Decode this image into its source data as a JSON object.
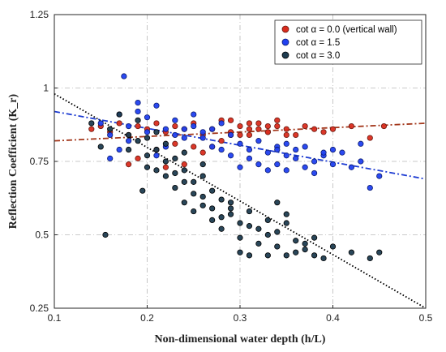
{
  "chart_data": {
    "type": "scatter",
    "xlabel": "Non-dimensional water depth  (h/L)",
    "ylabel": "Reflection Coefficient (K_r)",
    "xlim": [
      0.1,
      0.5
    ],
    "ylim": [
      0.25,
      1.25
    ],
    "xticks": [
      "0.1",
      "0.2",
      "0.3",
      "0.4",
      "0.5"
    ],
    "yticks": [
      "0.25",
      "0.5",
      "0.75",
      "1",
      "1.25"
    ],
    "grid": true,
    "legend_position": "top-right",
    "colors": {
      "vertical": "#d92c1e",
      "cot15": "#2040f0",
      "cot30": "#1e3c50"
    },
    "series": [
      {
        "name": "cot α = 0.0 (vertical wall)",
        "marker_color": "#d92c1e",
        "trend": {
          "x": [
            0.1,
            0.5
          ],
          "y": [
            0.82,
            0.88
          ],
          "style": "dash-dot",
          "color": "#a3371b"
        },
        "points": [
          [
            0.14,
            0.86
          ],
          [
            0.15,
            0.87
          ],
          [
            0.16,
            0.85
          ],
          [
            0.17,
            0.88
          ],
          [
            0.18,
            0.84
          ],
          [
            0.19,
            0.87
          ],
          [
            0.2,
            0.86
          ],
          [
            0.21,
            0.88
          ],
          [
            0.22,
            0.85
          ],
          [
            0.23,
            0.87
          ],
          [
            0.24,
            0.86
          ],
          [
            0.25,
            0.88
          ],
          [
            0.26,
            0.84
          ],
          [
            0.27,
            0.86
          ],
          [
            0.28,
            0.89
          ],
          [
            0.29,
            0.85
          ],
          [
            0.3,
            0.87
          ],
          [
            0.31,
            0.86
          ],
          [
            0.32,
            0.88
          ],
          [
            0.33,
            0.85
          ],
          [
            0.34,
            0.87
          ],
          [
            0.35,
            0.86
          ],
          [
            0.36,
            0.84
          ],
          [
            0.37,
            0.87
          ],
          [
            0.38,
            0.86
          ],
          [
            0.39,
            0.85
          ],
          [
            0.4,
            0.86
          ],
          [
            0.42,
            0.87
          ],
          [
            0.44,
            0.83
          ],
          [
            0.455,
            0.87
          ],
          [
            0.18,
            0.74
          ],
          [
            0.19,
            0.76
          ],
          [
            0.21,
            0.79
          ],
          [
            0.22,
            0.73
          ],
          [
            0.23,
            0.81
          ],
          [
            0.24,
            0.74
          ],
          [
            0.25,
            0.8
          ],
          [
            0.26,
            0.78
          ],
          [
            0.27,
            0.8
          ],
          [
            0.28,
            0.82
          ],
          [
            0.29,
            0.89
          ],
          [
            0.3,
            0.84
          ],
          [
            0.31,
            0.88
          ],
          [
            0.32,
            0.86
          ],
          [
            0.33,
            0.85
          ],
          [
            0.34,
            0.89
          ],
          [
            0.35,
            0.84
          ],
          [
            0.29,
            0.84
          ],
          [
            0.31,
            0.84
          ],
          [
            0.33,
            0.87
          ]
        ]
      },
      {
        "name": "cot α = 1.5",
        "marker_color": "#2040f0",
        "trend": {
          "x": [
            0.1,
            0.5
          ],
          "y": [
            0.92,
            0.69
          ],
          "style": "dash-dot",
          "color": "#1b3ad2"
        },
        "points": [
          [
            0.15,
            0.88
          ],
          [
            0.16,
            0.84
          ],
          [
            0.17,
            0.91
          ],
          [
            0.175,
            1.04
          ],
          [
            0.18,
            0.87
          ],
          [
            0.19,
            0.92
          ],
          [
            0.2,
            0.85
          ],
          [
            0.21,
            0.94
          ],
          [
            0.22,
            0.86
          ],
          [
            0.23,
            0.89
          ],
          [
            0.24,
            0.83
          ],
          [
            0.25,
            0.87
          ],
          [
            0.26,
            0.85
          ],
          [
            0.27,
            0.8
          ],
          [
            0.28,
            0.88
          ],
          [
            0.29,
            0.84
          ],
          [
            0.3,
            0.81
          ],
          [
            0.31,
            0.79
          ],
          [
            0.32,
            0.82
          ],
          [
            0.33,
            0.78
          ],
          [
            0.34,
            0.8
          ],
          [
            0.35,
            0.77
          ],
          [
            0.36,
            0.76
          ],
          [
            0.37,
            0.8
          ],
          [
            0.38,
            0.75
          ],
          [
            0.39,
            0.77
          ],
          [
            0.4,
            0.74
          ],
          [
            0.42,
            0.73
          ],
          [
            0.43,
            0.75
          ],
          [
            0.44,
            0.66
          ],
          [
            0.45,
            0.7
          ],
          [
            0.16,
            0.76
          ],
          [
            0.17,
            0.79
          ],
          [
            0.18,
            0.82
          ],
          [
            0.19,
            0.95
          ],
          [
            0.2,
            0.9
          ],
          [
            0.21,
            0.77
          ],
          [
            0.22,
            0.8
          ],
          [
            0.23,
            0.84
          ],
          [
            0.24,
            0.86
          ],
          [
            0.25,
            0.91
          ],
          [
            0.26,
            0.83
          ],
          [
            0.27,
            0.86
          ],
          [
            0.28,
            0.79
          ],
          [
            0.29,
            0.77
          ],
          [
            0.3,
            0.73
          ],
          [
            0.31,
            0.76
          ],
          [
            0.32,
            0.74
          ],
          [
            0.33,
            0.72
          ],
          [
            0.34,
            0.74
          ],
          [
            0.35,
            0.81
          ],
          [
            0.36,
            0.79
          ],
          [
            0.37,
            0.73
          ],
          [
            0.38,
            0.71
          ],
          [
            0.39,
            0.78
          ],
          [
            0.4,
            0.79
          ],
          [
            0.41,
            0.78
          ],
          [
            0.35,
            0.72
          ],
          [
            0.43,
            0.81
          ],
          [
            0.34,
            0.79
          ]
        ]
      },
      {
        "name": "cot α = 3.0",
        "marker_color": "#1e3c50",
        "trend": {
          "x": [
            0.1,
            0.5
          ],
          "y": [
            0.98,
            0.25
          ],
          "style": "dotted",
          "color": "#000000"
        },
        "points": [
          [
            0.14,
            0.88
          ],
          [
            0.15,
            0.8
          ],
          [
            0.155,
            0.5
          ],
          [
            0.16,
            0.86
          ],
          [
            0.17,
            0.91
          ],
          [
            0.18,
            0.84
          ],
          [
            0.19,
            0.89
          ],
          [
            0.195,
            0.65
          ],
          [
            0.2,
            0.77
          ],
          [
            0.21,
            0.72
          ],
          [
            0.22,
            0.7
          ],
          [
            0.23,
            0.66
          ],
          [
            0.24,
            0.61
          ],
          [
            0.25,
            0.58
          ],
          [
            0.26,
            0.6
          ],
          [
            0.27,
            0.55
          ],
          [
            0.28,
            0.52
          ],
          [
            0.29,
            0.57
          ],
          [
            0.3,
            0.49
          ],
          [
            0.31,
            0.53
          ],
          [
            0.32,
            0.47
          ],
          [
            0.33,
            0.5
          ],
          [
            0.34,
            0.46
          ],
          [
            0.35,
            0.43
          ],
          [
            0.36,
            0.48
          ],
          [
            0.37,
            0.45
          ],
          [
            0.38,
            0.43
          ],
          [
            0.39,
            0.42
          ],
          [
            0.4,
            0.46
          ],
          [
            0.42,
            0.44
          ],
          [
            0.44,
            0.42
          ],
          [
            0.45,
            0.44
          ],
          [
            0.21,
            0.85
          ],
          [
            0.22,
            0.81
          ],
          [
            0.23,
            0.76
          ],
          [
            0.24,
            0.72
          ],
          [
            0.25,
            0.68
          ],
          [
            0.26,
            0.63
          ],
          [
            0.27,
            0.59
          ],
          [
            0.28,
            0.56
          ],
          [
            0.29,
            0.61
          ],
          [
            0.3,
            0.54
          ],
          [
            0.31,
            0.58
          ],
          [
            0.32,
            0.52
          ],
          [
            0.33,
            0.55
          ],
          [
            0.34,
            0.51
          ],
          [
            0.35,
            0.54
          ],
          [
            0.36,
            0.44
          ],
          [
            0.37,
            0.47
          ],
          [
            0.38,
            0.49
          ],
          [
            0.2,
            0.83
          ],
          [
            0.21,
            0.79
          ],
          [
            0.22,
            0.75
          ],
          [
            0.23,
            0.71
          ],
          [
            0.24,
            0.68
          ],
          [
            0.25,
            0.64
          ],
          [
            0.26,
            0.7
          ],
          [
            0.27,
            0.65
          ],
          [
            0.28,
            0.62
          ],
          [
            0.29,
            0.59
          ],
          [
            0.3,
            0.44
          ],
          [
            0.31,
            0.43
          ],
          [
            0.33,
            0.43
          ],
          [
            0.34,
            0.61
          ],
          [
            0.35,
            0.57
          ],
          [
            0.18,
            0.79
          ],
          [
            0.19,
            0.82
          ],
          [
            0.2,
            0.73
          ],
          [
            0.24,
            0.78
          ],
          [
            0.26,
            0.74
          ]
        ]
      }
    ]
  }
}
